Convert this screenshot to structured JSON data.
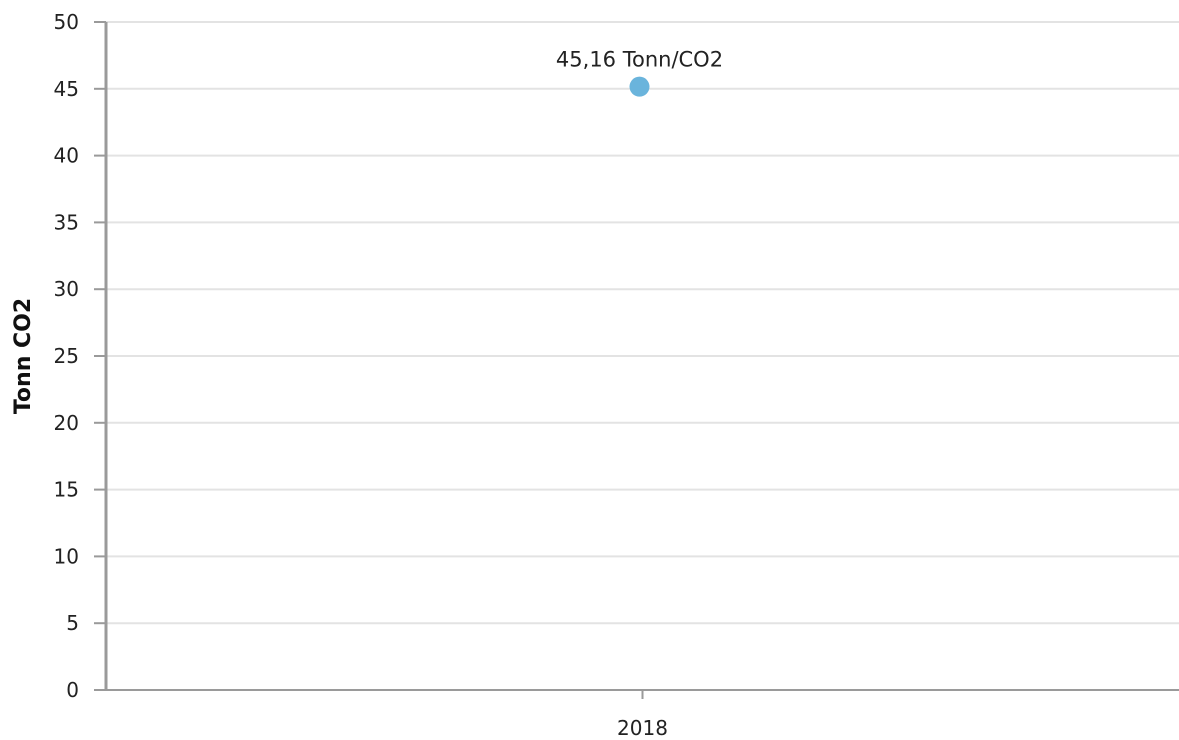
{
  "chart_data": {
    "type": "scatter",
    "title": "",
    "xlabel": "",
    "ylabel": "Tonn CO2",
    "categories": [
      "2018"
    ],
    "series": [
      {
        "values": [
          45.16
        ],
        "data_labels": [
          "45,16 Tonn/CO2"
        ]
      }
    ],
    "ylim": [
      0,
      50
    ],
    "yticks": [
      0,
      5,
      10,
      15,
      20,
      25,
      30,
      35,
      40,
      45,
      50
    ],
    "ytick_labels": [
      "0",
      "5",
      "10",
      "15",
      "20",
      "25",
      "30",
      "35",
      "40",
      "45",
      "50"
    ],
    "grid": true,
    "legend": "none"
  },
  "colors": {
    "marker": "#6ab4dc",
    "grid": "#e3e3e3",
    "axis": "#9a9a9a"
  }
}
